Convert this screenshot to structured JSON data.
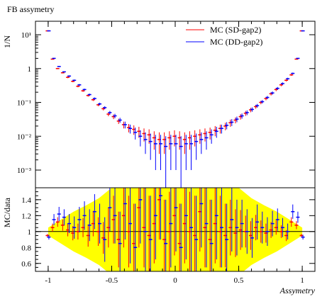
{
  "chart_data": [
    {
      "type": "scatter",
      "title": "FB assymetry",
      "xlabel": "",
      "ylabel": "1/N",
      "yscale": "log",
      "xlim": [
        -1.1,
        1.1
      ],
      "ylim": [
        0.0003,
        25
      ],
      "yticks": [
        {
          "value": 0.001,
          "label": "10⁻³"
        },
        {
          "value": 0.01,
          "label": "10⁻²"
        },
        {
          "value": 0.1,
          "label": "10⁻¹"
        },
        {
          "value": 1,
          "label": "1"
        },
        {
          "value": 10,
          "label": "10¹"
        }
      ],
      "legend_position": "top-right",
      "x": [
        -1.0,
        -0.96,
        -0.92,
        -0.88,
        -0.84,
        -0.8,
        -0.76,
        -0.72,
        -0.68,
        -0.64,
        -0.6,
        -0.56,
        -0.52,
        -0.48,
        -0.44,
        -0.4,
        -0.36,
        -0.32,
        -0.28,
        -0.24,
        -0.2,
        -0.16,
        -0.12,
        -0.08,
        -0.04,
        0.0,
        0.04,
        0.08,
        0.12,
        0.16,
        0.2,
        0.24,
        0.28,
        0.32,
        0.36,
        0.4,
        0.44,
        0.48,
        0.52,
        0.56,
        0.6,
        0.64,
        0.68,
        0.72,
        0.76,
        0.8,
        0.84,
        0.88,
        0.92,
        0.96,
        1.0
      ],
      "series": [
        {
          "name": "MC (SD-gap2)",
          "color": "#ff0000",
          "values": [
            13,
            1.9,
            1.0,
            0.75,
            0.55,
            0.42,
            0.3,
            0.22,
            0.16,
            0.12,
            0.085,
            0.065,
            0.045,
            0.038,
            0.028,
            0.022,
            0.018,
            0.016,
            0.014,
            0.012,
            0.011,
            0.009,
            0.008,
            0.008,
            0.009,
            0.01,
            0.009,
            0.008,
            0.009,
            0.01,
            0.011,
            0.012,
            0.013,
            0.015,
            0.017,
            0.02,
            0.025,
            0.03,
            0.038,
            0.048,
            0.06,
            0.075,
            0.1,
            0.13,
            0.18,
            0.24,
            0.33,
            0.45,
            0.65,
            1.9,
            13
          ],
          "errors": [
            0.2,
            0.06,
            0.04,
            0.03,
            0.03,
            0.025,
            0.02,
            0.015,
            0.012,
            0.01,
            0.008,
            0.007,
            0.006,
            0.006,
            0.005,
            0.005,
            0.005,
            0.005,
            0.005,
            0.005,
            0.005,
            0.005,
            0.005,
            0.005,
            0.005,
            0.005,
            0.005,
            0.005,
            0.005,
            0.005,
            0.005,
            0.005,
            0.005,
            0.005,
            0.005,
            0.005,
            0.006,
            0.006,
            0.007,
            0.008,
            0.009,
            0.01,
            0.012,
            0.015,
            0.02,
            0.025,
            0.03,
            0.035,
            0.04,
            0.06,
            0.2
          ]
        },
        {
          "name": "MC (DD-gap2)",
          "color": "#0000ff",
          "values": [
            13,
            2.0,
            1.15,
            0.8,
            0.6,
            0.45,
            0.33,
            0.24,
            0.17,
            0.13,
            0.09,
            0.07,
            0.05,
            0.04,
            0.03,
            0.022,
            0.017,
            0.013,
            0.01,
            0.008,
            0.007,
            0.006,
            0.006,
            0.005,
            0.006,
            0.006,
            0.005,
            0.006,
            0.006,
            0.007,
            0.008,
            0.009,
            0.011,
            0.014,
            0.017,
            0.021,
            0.026,
            0.032,
            0.04,
            0.05,
            0.062,
            0.08,
            0.105,
            0.14,
            0.19,
            0.26,
            0.36,
            0.5,
            0.72,
            2.0,
            13
          ],
          "errors": [
            0.2,
            0.06,
            0.04,
            0.03,
            0.03,
            0.025,
            0.02,
            0.015,
            0.012,
            0.01,
            0.008,
            0.007,
            0.006,
            0.006,
            0.005,
            0.005,
            0.005,
            0.005,
            0.005,
            0.005,
            0.005,
            0.005,
            0.005,
            0.005,
            0.005,
            0.005,
            0.005,
            0.005,
            0.005,
            0.005,
            0.005,
            0.005,
            0.005,
            0.005,
            0.005,
            0.005,
            0.006,
            0.006,
            0.007,
            0.008,
            0.009,
            0.01,
            0.012,
            0.015,
            0.02,
            0.025,
            0.03,
            0.035,
            0.04,
            0.06,
            0.2
          ]
        }
      ]
    },
    {
      "type": "scatter",
      "title": "",
      "xlabel": "Assymetry",
      "ylabel": "MC/data",
      "xlim": [
        -1.1,
        1.1
      ],
      "ylim": [
        0.5,
        1.55
      ],
      "yticks": [
        0.6,
        0.8,
        1,
        1.2,
        1.4
      ],
      "yticklabels": [
        "0.6",
        "0.8",
        "1",
        "1.2",
        "1.4"
      ],
      "xticks": [
        -1,
        -0.5,
        0,
        0.5,
        1
      ],
      "xticklabels": [
        "-1",
        "-0.5",
        "0",
        "0.5",
        "1"
      ],
      "reference_line": 1,
      "band": {
        "color": "#ffff00",
        "x": [
          -1.0,
          -0.9,
          -0.8,
          -0.7,
          -0.6,
          -0.5,
          -0.4,
          -0.3,
          -0.2,
          -0.1,
          0.0,
          0.1,
          0.2,
          0.3,
          0.4,
          0.5,
          0.6,
          0.7,
          0.8,
          0.9,
          1.0
        ],
        "half_width": [
          0.05,
          0.15,
          0.25,
          0.33,
          0.42,
          0.55,
          0.8,
          0.95,
          1.0,
          1.0,
          1.0,
          1.0,
          1.0,
          0.95,
          0.8,
          0.55,
          0.42,
          0.33,
          0.25,
          0.15,
          0.05
        ]
      },
      "x": [
        -1.0,
        -0.96,
        -0.92,
        -0.88,
        -0.84,
        -0.8,
        -0.76,
        -0.72,
        -0.68,
        -0.64,
        -0.6,
        -0.56,
        -0.52,
        -0.48,
        -0.44,
        -0.4,
        -0.36,
        -0.32,
        -0.28,
        -0.24,
        -0.2,
        -0.16,
        -0.12,
        -0.08,
        -0.04,
        0.0,
        0.04,
        0.08,
        0.12,
        0.16,
        0.2,
        0.24,
        0.28,
        0.32,
        0.36,
        0.4,
        0.44,
        0.48,
        0.52,
        0.56,
        0.6,
        0.64,
        0.68,
        0.72,
        0.76,
        0.8,
        0.84,
        0.88,
        0.92,
        0.96,
        1.0
      ],
      "series": [
        {
          "name": "MC (SD-gap2)",
          "color": "#ff0000",
          "values": [
            0.95,
            1.05,
            1.12,
            1.08,
            1.02,
            0.98,
            1.0,
            1.05,
            0.95,
            1.1,
            1.0,
            0.92,
            1.05,
            1.15,
            0.9,
            1.2,
            1.0,
            0.85,
            1.3,
            1.05,
            0.95,
            1.1,
            1.4,
            0.9,
            1.0,
            1.2,
            0.85,
            1.1,
            1.0,
            0.95,
            1.25,
            1.05,
            0.9,
            1.1,
            1.0,
            0.95,
            1.05,
            0.98,
            1.02,
            1.0,
            0.95,
            1.05,
            1.0,
            0.98,
            1.02,
            1.05,
            1.0,
            0.95,
            1.12,
            1.08,
            0.95
          ],
          "errors": [
            0.02,
            0.05,
            0.06,
            0.07,
            0.08,
            0.09,
            0.1,
            0.12,
            0.14,
            0.16,
            0.18,
            0.2,
            0.25,
            0.3,
            0.35,
            0.4,
            0.45,
            0.5,
            0.5,
            0.5,
            0.5,
            0.5,
            0.5,
            0.5,
            0.5,
            0.5,
            0.5,
            0.5,
            0.5,
            0.5,
            0.5,
            0.5,
            0.5,
            0.5,
            0.45,
            0.4,
            0.35,
            0.3,
            0.25,
            0.2,
            0.18,
            0.16,
            0.14,
            0.12,
            0.1,
            0.09,
            0.08,
            0.07,
            0.06,
            0.05,
            0.02
          ]
        },
        {
          "name": "MC (DD-gap2)",
          "color": "#0000ff",
          "values": [
            0.93,
            1.15,
            1.22,
            1.18,
            1.1,
            1.05,
            1.15,
            1.2,
            1.08,
            1.25,
            1.1,
            0.9,
            1.3,
            1.2,
            0.85,
            1.35,
            1.1,
            0.8,
            1.4,
            1.0,
            0.9,
            1.2,
            1.45,
            0.85,
            1.1,
            1.3,
            0.8,
            1.2,
            1.05,
            0.9,
            1.35,
            1.1,
            0.85,
            1.2,
            1.05,
            0.9,
            1.15,
            1.05,
            1.1,
            1.0,
            0.92,
            1.12,
            1.05,
            1.0,
            1.1,
            1.15,
            1.05,
            1.0,
            1.25,
            1.18,
            0.93
          ],
          "errors": [
            0.03,
            0.07,
            0.09,
            0.1,
            0.12,
            0.14,
            0.16,
            0.18,
            0.2,
            0.22,
            0.25,
            0.28,
            0.3,
            0.35,
            0.4,
            0.45,
            0.5,
            0.55,
            0.55,
            0.55,
            0.55,
            0.55,
            0.55,
            0.55,
            0.55,
            0.55,
            0.55,
            0.55,
            0.55,
            0.55,
            0.55,
            0.55,
            0.55,
            0.55,
            0.5,
            0.45,
            0.4,
            0.35,
            0.3,
            0.28,
            0.25,
            0.22,
            0.2,
            0.18,
            0.16,
            0.14,
            0.12,
            0.1,
            0.09,
            0.07,
            0.03
          ]
        }
      ]
    }
  ]
}
